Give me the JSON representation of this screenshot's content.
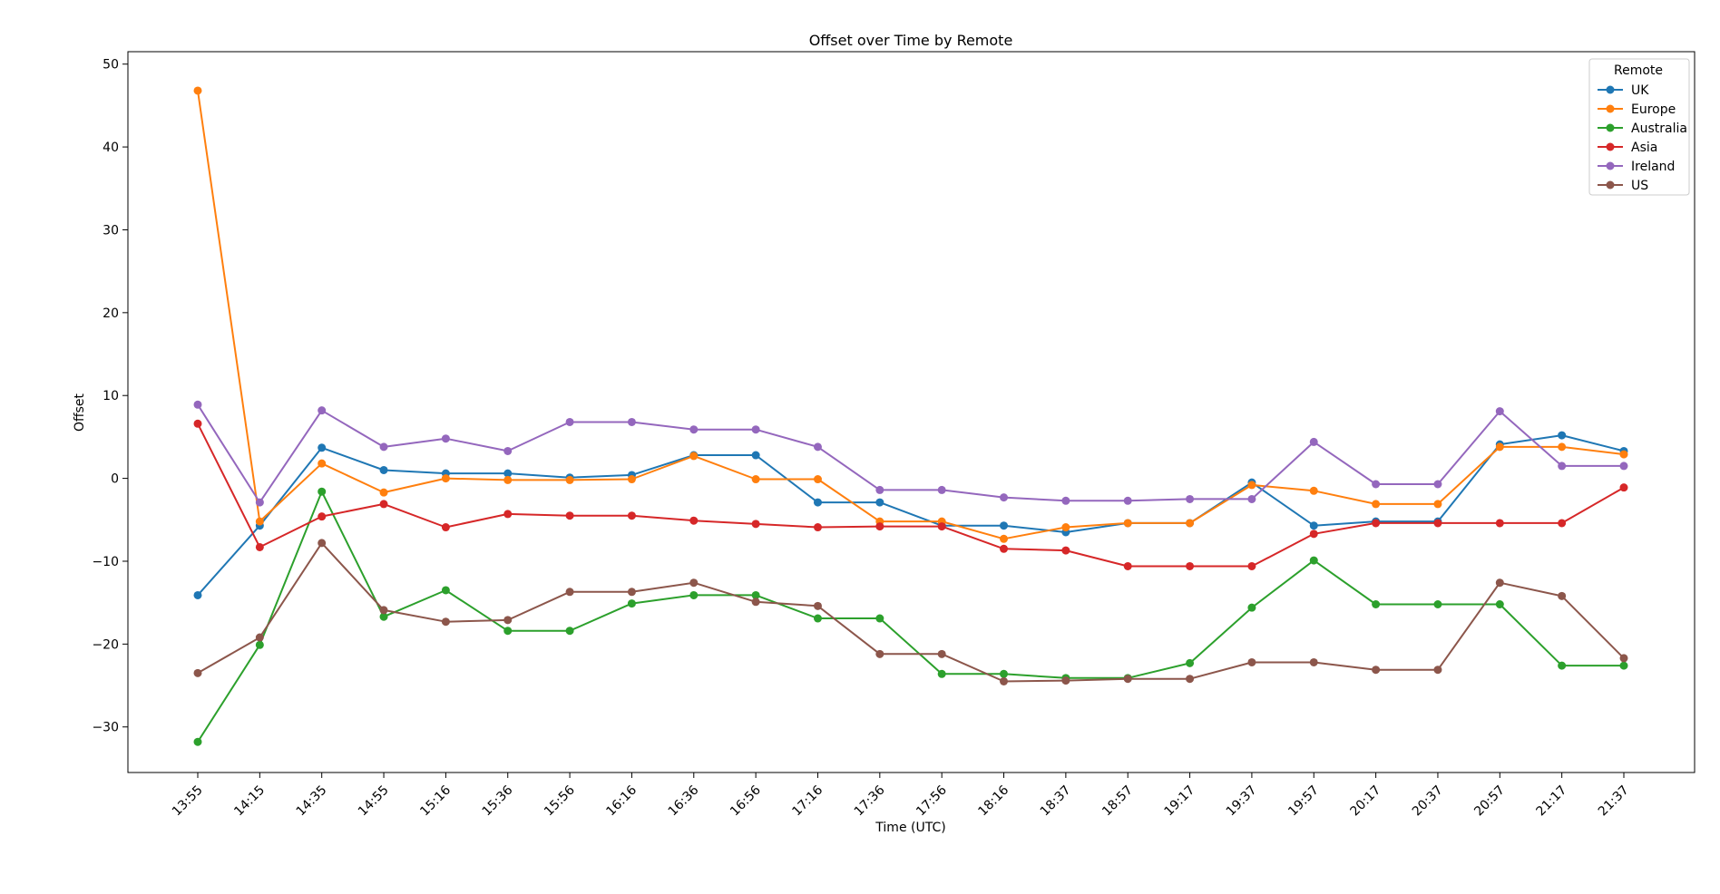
{
  "chart_data": {
    "type": "line",
    "title": "Offset over Time by Remote",
    "xlabel": "Time (UTC)",
    "ylabel": "Offset",
    "ylim": [
      -35.5,
      51.5
    ],
    "yticks": [
      -30,
      -20,
      -10,
      0,
      10,
      20,
      30,
      40,
      50
    ],
    "grid": false,
    "legend_title": "Remote",
    "legend_position": "top-right",
    "categories": [
      "13:55",
      "14:15",
      "14:35",
      "14:55",
      "15:16",
      "15:36",
      "15:56",
      "16:16",
      "16:36",
      "16:56",
      "17:16",
      "17:36",
      "17:56",
      "18:16",
      "18:37",
      "18:57",
      "19:17",
      "19:37",
      "19:57",
      "20:17",
      "20:37",
      "20:57",
      "21:17",
      "21:37"
    ],
    "series": [
      {
        "name": "UK",
        "color": "#1f77b4",
        "values": [
          -14.1,
          -5.7,
          3.7,
          1.0,
          0.6,
          0.6,
          0.1,
          0.4,
          2.8,
          2.8,
          -2.9,
          -2.9,
          -5.7,
          -5.7,
          -6.5,
          -5.4,
          -5.4,
          -0.5,
          -5.7,
          -5.2,
          -5.2,
          4.1,
          5.2,
          3.3
        ]
      },
      {
        "name": "Europe",
        "color": "#ff7f0e",
        "values": [
          46.8,
          -5.2,
          1.8,
          -1.7,
          0.0,
          -0.2,
          -0.2,
          -0.1,
          2.7,
          -0.1,
          -0.1,
          -5.2,
          -5.2,
          -7.3,
          -5.9,
          -5.4,
          -5.4,
          -0.8,
          -1.5,
          -3.1,
          -3.1,
          3.8,
          3.8,
          2.9
        ]
      },
      {
        "name": "Australia",
        "color": "#2ca02c",
        "values": [
          -31.8,
          -20.1,
          -1.6,
          -16.7,
          -13.5,
          -18.4,
          -18.4,
          -15.1,
          -14.1,
          -14.1,
          -16.9,
          -16.9,
          -23.6,
          -23.6,
          -24.1,
          -24.1,
          -22.3,
          -15.6,
          -9.9,
          -15.2,
          -15.2,
          -15.2,
          -22.6,
          -22.6
        ]
      },
      {
        "name": "Asia",
        "color": "#d62728",
        "values": [
          6.6,
          -8.3,
          -4.6,
          -3.1,
          -5.9,
          -4.3,
          -4.5,
          -4.5,
          -5.1,
          -5.5,
          -5.9,
          -5.8,
          -5.8,
          -8.5,
          -8.7,
          -10.6,
          -10.6,
          -10.6,
          -6.7,
          -5.4,
          -5.4,
          -5.4,
          -5.4,
          -1.1
        ]
      },
      {
        "name": "Ireland",
        "color": "#9467bd",
        "values": [
          8.9,
          -2.9,
          8.2,
          3.8,
          4.8,
          3.3,
          6.8,
          6.8,
          5.9,
          5.9,
          3.8,
          -1.4,
          -1.4,
          -2.3,
          -2.7,
          -2.7,
          -2.5,
          -2.5,
          4.4,
          -0.7,
          -0.7,
          8.1,
          1.5,
          1.5
        ]
      },
      {
        "name": "US",
        "color": "#8c564b",
        "values": [
          -23.5,
          -19.2,
          -7.8,
          -15.9,
          -17.3,
          -17.1,
          -13.7,
          -13.7,
          -12.6,
          -14.9,
          -15.4,
          -21.2,
          -21.2,
          -24.5,
          -24.4,
          -24.2,
          -24.2,
          -22.2,
          -22.2,
          -23.1,
          -23.1,
          -12.6,
          -14.2,
          -21.7
        ]
      }
    ]
  }
}
